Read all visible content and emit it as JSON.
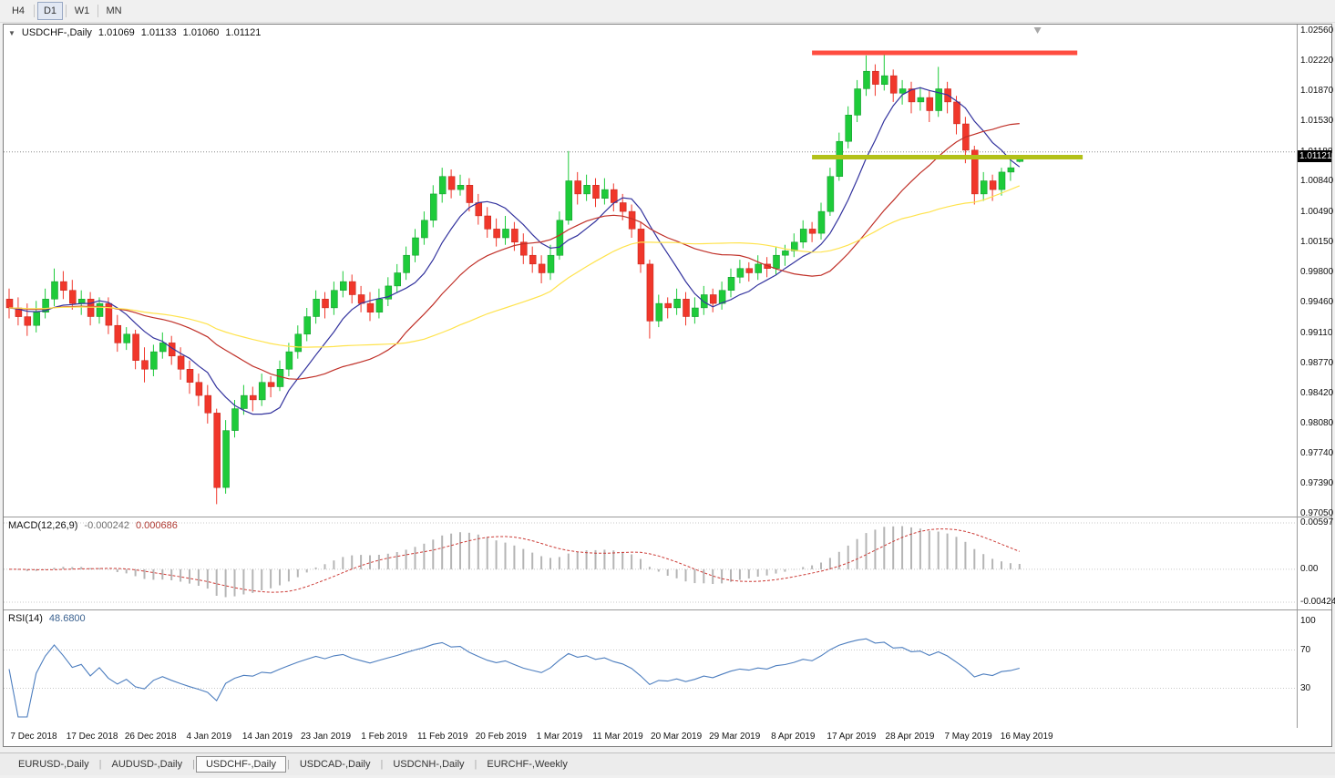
{
  "toolbar": {
    "timeframes": [
      {
        "label": "H4",
        "active": false
      },
      {
        "label": "D1",
        "active": true
      },
      {
        "label": "W1",
        "active": false
      },
      {
        "label": "MN",
        "active": false
      }
    ]
  },
  "chart_header": {
    "collapse_icon": "▼",
    "symbol": "USDCHF-,Daily",
    "open": "1.01069",
    "high": "1.01133",
    "low": "1.01060",
    "close": "1.01121"
  },
  "chart_data": {
    "type": "candlestick",
    "symbol": "USDCHF",
    "timeframe": "Daily",
    "price_min": 0.9705,
    "price_max": 1.0256,
    "current_price": 1.01121,
    "current_price_label": "1.01121",
    "grid_price": 1.0118,
    "shift_marker_index": 114,
    "price_axis_labels": [
      "1.02560",
      "1.02220",
      "1.01870",
      "1.01530",
      "1.01180",
      "1.00840",
      "1.00490",
      "1.00150",
      "0.99800",
      "0.99460",
      "0.99110",
      "0.98770",
      "0.98420",
      "0.98080",
      "0.97740",
      "0.97390",
      "0.97050"
    ],
    "dates": [
      "7 Dec 2018",
      "17 Dec 2018",
      "26 Dec 2018",
      "4 Jan 2019",
      "14 Jan 2019",
      "23 Jan 2019",
      "1 Feb 2019",
      "11 Feb 2019",
      "20 Feb 2019",
      "1 Mar 2019",
      "11 Mar 2019",
      "20 Mar 2019",
      "29 Mar 2019",
      "8 Apr 2019",
      "17 Apr 2019",
      "28 Apr 2019",
      "7 May 2019",
      "16 May 2019"
    ],
    "resistance": {
      "price": 1.0231,
      "x1_index": 89,
      "x2_index": 118.4,
      "color": "#ff4d40",
      "width": 5
    },
    "support": {
      "price": 1.0112,
      "x1_index": 89,
      "x2_index": 119,
      "color": "#b3c119",
      "width": 5
    },
    "moving_averages": [
      {
        "period": 8,
        "color": "#33339e"
      },
      {
        "period": 21,
        "color": "#c03028"
      },
      {
        "period": 38,
        "color": "#ffe34d"
      }
    ],
    "colors": {
      "up_fill": "#1ecb3a",
      "up_stroke": "#0b9427",
      "down_fill": "#f0372b",
      "down_stroke": "#c21d12"
    },
    "candles": [
      [
        0.995,
        0.9962,
        0.9928,
        0.994
      ],
      [
        0.994,
        0.9952,
        0.992,
        0.993
      ],
      [
        0.993,
        0.9945,
        0.9908,
        0.992
      ],
      [
        0.992,
        0.9948,
        0.9912,
        0.9935
      ],
      [
        0.9935,
        0.9962,
        0.9928,
        0.995
      ],
      [
        0.995,
        0.9985,
        0.9942,
        0.997
      ],
      [
        0.997,
        0.9982,
        0.995,
        0.996
      ],
      [
        0.996,
        0.9972,
        0.9938,
        0.9945
      ],
      [
        0.9945,
        0.996,
        0.9932,
        0.995
      ],
      [
        0.995,
        0.9958,
        0.992,
        0.993
      ],
      [
        0.993,
        0.9952,
        0.9922,
        0.9945
      ],
      [
        0.9945,
        0.9952,
        0.991,
        0.992
      ],
      [
        0.992,
        0.9932,
        0.989,
        0.99
      ],
      [
        0.99,
        0.9918,
        0.9892,
        0.991
      ],
      [
        0.991,
        0.9915,
        0.987,
        0.988
      ],
      [
        0.988,
        0.9895,
        0.9855,
        0.987
      ],
      [
        0.987,
        0.9898,
        0.9862,
        0.989
      ],
      [
        0.989,
        0.9912,
        0.9882,
        0.99
      ],
      [
        0.99,
        0.9908,
        0.9875,
        0.9885
      ],
      [
        0.9885,
        0.9895,
        0.9858,
        0.987
      ],
      [
        0.987,
        0.988,
        0.9842,
        0.9855
      ],
      [
        0.9855,
        0.9865,
        0.9828,
        0.984
      ],
      [
        0.984,
        0.9852,
        0.9808,
        0.982
      ],
      [
        0.982,
        0.9825,
        0.9716,
        0.9735
      ],
      [
        0.9735,
        0.9812,
        0.9728,
        0.98
      ],
      [
        0.98,
        0.9835,
        0.9792,
        0.9825
      ],
      [
        0.9825,
        0.9852,
        0.9818,
        0.984
      ],
      [
        0.984,
        0.985,
        0.9822,
        0.9835
      ],
      [
        0.9835,
        0.9865,
        0.9828,
        0.9855
      ],
      [
        0.9855,
        0.9862,
        0.9838,
        0.985
      ],
      [
        0.985,
        0.988,
        0.9845,
        0.987
      ],
      [
        0.987,
        0.99,
        0.9862,
        0.989
      ],
      [
        0.989,
        0.992,
        0.9882,
        0.991
      ],
      [
        0.991,
        0.994,
        0.9902,
        0.993
      ],
      [
        0.993,
        0.996,
        0.9922,
        0.995
      ],
      [
        0.995,
        0.9958,
        0.9928,
        0.994
      ],
      [
        0.994,
        0.997,
        0.9932,
        0.996
      ],
      [
        0.996,
        0.9982,
        0.9952,
        0.997
      ],
      [
        0.997,
        0.9978,
        0.9945,
        0.9955
      ],
      [
        0.9955,
        0.9965,
        0.9935,
        0.9945
      ],
      [
        0.9945,
        0.9958,
        0.9925,
        0.9935
      ],
      [
        0.9935,
        0.9962,
        0.9928,
        0.995
      ],
      [
        0.995,
        0.9975,
        0.9942,
        0.9965
      ],
      [
        0.9965,
        0.999,
        0.9958,
        0.998
      ],
      [
        0.998,
        1.001,
        0.9972,
        1.0
      ],
      [
        1.0,
        1.003,
        0.9992,
        1.002
      ],
      [
        1.002,
        1.005,
        1.0012,
        1.004
      ],
      [
        1.004,
        1.008,
        1.0032,
        1.007
      ],
      [
        1.007,
        1.01,
        1.006,
        1.009
      ],
      [
        1.009,
        1.0098,
        1.0065,
        1.0075
      ],
      [
        1.0075,
        1.0092,
        1.0068,
        1.008
      ],
      [
        1.008,
        1.0088,
        1.005,
        1.006
      ],
      [
        1.006,
        1.007,
        1.0035,
        1.0045
      ],
      [
        1.0045,
        1.0055,
        1.002,
        1.003
      ],
      [
        1.003,
        1.0042,
        1.001,
        1.002
      ],
      [
        1.002,
        1.0045,
        1.0012,
        1.003
      ],
      [
        1.003,
        1.0038,
        1.0005,
        1.0015
      ],
      [
        1.0015,
        1.0025,
        0.999,
        1.0
      ],
      [
        1.0,
        1.001,
        0.998,
        0.999
      ],
      [
        0.999,
        1.0,
        0.9968,
        0.998
      ],
      [
        0.998,
        1.0012,
        0.9972,
        1.0
      ],
      [
        1.0,
        1.005,
        0.9995,
        1.004
      ],
      [
        1.004,
        1.0119,
        1.0035,
        1.0085
      ],
      [
        1.0085,
        1.0095,
        1.0058,
        1.007
      ],
      [
        1.007,
        1.0092,
        1.0062,
        1.008
      ],
      [
        1.008,
        1.0088,
        1.0055,
        1.0065
      ],
      [
        1.0065,
        1.0088,
        1.0058,
        1.0075
      ],
      [
        1.0075,
        1.0082,
        1.005,
        1.006
      ],
      [
        1.006,
        1.007,
        1.004,
        1.005
      ],
      [
        1.005,
        1.0058,
        1.002,
        1.003
      ],
      [
        1.003,
        1.0038,
        0.998,
        0.999
      ],
      [
        0.999,
        0.9995,
        0.9905,
        0.9925
      ],
      [
        0.9925,
        0.9955,
        0.9918,
        0.9945
      ],
      [
        0.9945,
        0.9952,
        0.9928,
        0.994
      ],
      [
        0.994,
        0.9962,
        0.9932,
        0.995
      ],
      [
        0.995,
        0.9958,
        0.992,
        0.993
      ],
      [
        0.993,
        0.9952,
        0.9922,
        0.994
      ],
      [
        0.994,
        0.9965,
        0.9932,
        0.9955
      ],
      [
        0.9955,
        0.9962,
        0.9935,
        0.9945
      ],
      [
        0.9945,
        0.997,
        0.9938,
        0.996
      ],
      [
        0.996,
        0.9985,
        0.9952,
        0.9975
      ],
      [
        0.9975,
        0.9995,
        0.9968,
        0.9985
      ],
      [
        0.9985,
        0.9992,
        0.997,
        0.998
      ],
      [
        0.998,
        1.0,
        0.9972,
        0.999
      ],
      [
        0.999,
        0.9998,
        0.9975,
        0.9985
      ],
      [
        0.9985,
        1.001,
        0.9978,
        1.0
      ],
      [
        1.0,
        1.0012,
        0.9988,
        1.0005
      ],
      [
        1.0005,
        1.0025,
        0.9998,
        1.0015
      ],
      [
        1.0015,
        1.004,
        1.0008,
        1.003
      ],
      [
        1.003,
        1.0038,
        1.0015,
        1.0025
      ],
      [
        1.0025,
        1.006,
        1.0018,
        1.005
      ],
      [
        1.005,
        1.01,
        1.0045,
        1.009
      ],
      [
        1.009,
        1.014,
        1.0085,
        1.013
      ],
      [
        1.013,
        1.017,
        1.0122,
        1.016
      ],
      [
        1.016,
        1.02,
        1.0152,
        1.019
      ],
      [
        1.019,
        1.0228,
        1.0182,
        1.021
      ],
      [
        1.021,
        1.0218,
        1.0182,
        1.0195
      ],
      [
        1.0195,
        1.023,
        1.0188,
        1.0205
      ],
      [
        1.0205,
        1.0212,
        1.0175,
        1.0185
      ],
      [
        1.0185,
        1.02,
        1.0172,
        1.019
      ],
      [
        1.019,
        1.0198,
        1.0162,
        1.0175
      ],
      [
        1.0175,
        1.0192,
        1.0165,
        1.018
      ],
      [
        1.018,
        1.0188,
        1.0152,
        1.0165
      ],
      [
        1.0165,
        1.0215,
        1.0158,
        1.019
      ],
      [
        1.019,
        1.0198,
        1.0162,
        1.0175
      ],
      [
        1.0175,
        1.0182,
        1.0138,
        1.015
      ],
      [
        1.015,
        1.0158,
        1.0105,
        1.012
      ],
      [
        1.012,
        1.0125,
        1.0058,
        1.007
      ],
      [
        1.007,
        1.0095,
        1.0062,
        1.0085
      ],
      [
        1.0085,
        1.0092,
        1.0062,
        1.0075
      ],
      [
        1.0075,
        1.01,
        1.0068,
        1.0095
      ],
      [
        1.0095,
        1.011,
        1.0085,
        1.01
      ],
      [
        1.0107,
        1.0113,
        1.0106,
        1.0112
      ]
    ]
  },
  "macd": {
    "title": "MACD(12,26,9)",
    "main_value": "-0.000242",
    "signal_value": "0.000686",
    "fast": 12,
    "slow": 26,
    "signal": 9,
    "max": 0.00597,
    "min": -0.00424,
    "axis_labels": [
      "0.00597",
      "0.00",
      "-0.00424"
    ],
    "histogram_color": "#b5b5b5",
    "signal_color": "#cc3b36",
    "level_color": "#c8c8c8"
  },
  "rsi": {
    "title": "RSI(14)",
    "value": "48.6800",
    "period": 14,
    "axis_labels": [
      "100",
      "70",
      "30"
    ],
    "axis_values": [
      100,
      70,
      30
    ],
    "levels": [
      70,
      30
    ],
    "line_color": "#4d7ebf",
    "level_color": "#c8c8c8"
  },
  "tabbar": {
    "separator": "|",
    "tabs": [
      {
        "label": "EURUSD-,Daily",
        "active": false
      },
      {
        "label": "AUDUSD-,Daily",
        "active": false
      },
      {
        "label": "USDCHF-,Daily",
        "active": true
      },
      {
        "label": "USDCAD-,Daily",
        "active": false
      },
      {
        "label": "USDCNH-,Daily",
        "active": false
      },
      {
        "label": "EURCHF-,Weekly",
        "active": false
      }
    ]
  }
}
